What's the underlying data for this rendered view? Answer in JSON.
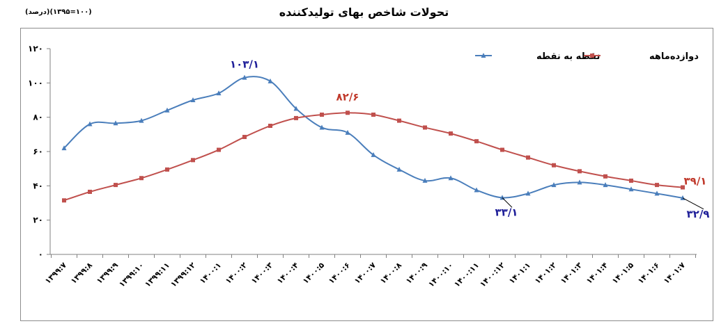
{
  "header": {
    "title": "تحولات شاخص بهای تولیدکننده",
    "base_note": "(درصد)(۱۰۰=۱۳۹۵)"
  },
  "chart_data": {
    "type": "line",
    "categories": [
      "۱۳۹۹:۷",
      "۱۳۹۹:۸",
      "۱۳۹۹:۹",
      "۱۳۹۹:۱۰",
      "۱۳۹۹:۱۱",
      "۱۳۹۹:۱۲",
      "۱۴۰۰:۱",
      "۱۴۰۰:۲",
      "۱۴۰۰:۳",
      "۱۴۰۰:۴",
      "۱۴۰۰:۵",
      "۱۴۰۰:۶",
      "۱۴۰۰:۷",
      "۱۴۰۰:۸",
      "۱۴۰۰:۹",
      "۱۴۰۰:۱۰",
      "۱۴۰۰:۱۱",
      "۱۴۰۰:۱۲",
      "۱۴۰۱:۱",
      "۱۴۰۱:۲",
      "۱۴۰۱:۳",
      "۱۴۰۱:۴",
      "۱۴۰۱:۵",
      "۱۴۰۱:۶",
      "۱۴۰۱:۷"
    ],
    "series": [
      {
        "name": "نقطه به نقطه",
        "color": "#4a7ebb",
        "marker": "triangle",
        "values": [
          62,
          76,
          76.5,
          78,
          84,
          90,
          94,
          103.1,
          101,
          85,
          74,
          71,
          58,
          49.5,
          43,
          44.5,
          37.5,
          33.1,
          35.5,
          40.5,
          42,
          40.5,
          38,
          35.5,
          32.9
        ]
      },
      {
        "name": "دوازده‌ماهه",
        "color": "#c0504d",
        "marker": "square",
        "values": [
          31.5,
          36.5,
          40.5,
          44.5,
          49.5,
          55,
          61,
          68.5,
          75,
          79.5,
          81.5,
          82.6,
          81.5,
          78,
          74,
          70.5,
          66,
          61,
          56.5,
          52,
          48.5,
          45.5,
          43,
          40.5,
          39.1
        ]
      }
    ],
    "ylim": [
      0,
      120
    ],
    "yticks": [
      "۰",
      "۲۰",
      "۴۰",
      "۶۰",
      "۸۰",
      "۱۰۰",
      "۱۲۰"
    ],
    "grid": false,
    "legend_position": "top-right",
    "annotations": [
      {
        "text": "۱۰۳/۱",
        "series": 0,
        "index": 7,
        "color": "#1f1f99"
      },
      {
        "text": "۸۲/۶",
        "series": 1,
        "index": 11,
        "color": "#c0392b"
      },
      {
        "text": "۳۳/۱",
        "series": 0,
        "index": 17,
        "color": "#1f1f99"
      },
      {
        "text": "۳۹/۱",
        "series": 1,
        "index": 24,
        "color": "#c0392b"
      },
      {
        "text": "۳۲/۹",
        "series": 0,
        "index": 24,
        "color": "#1f1f99"
      }
    ]
  }
}
